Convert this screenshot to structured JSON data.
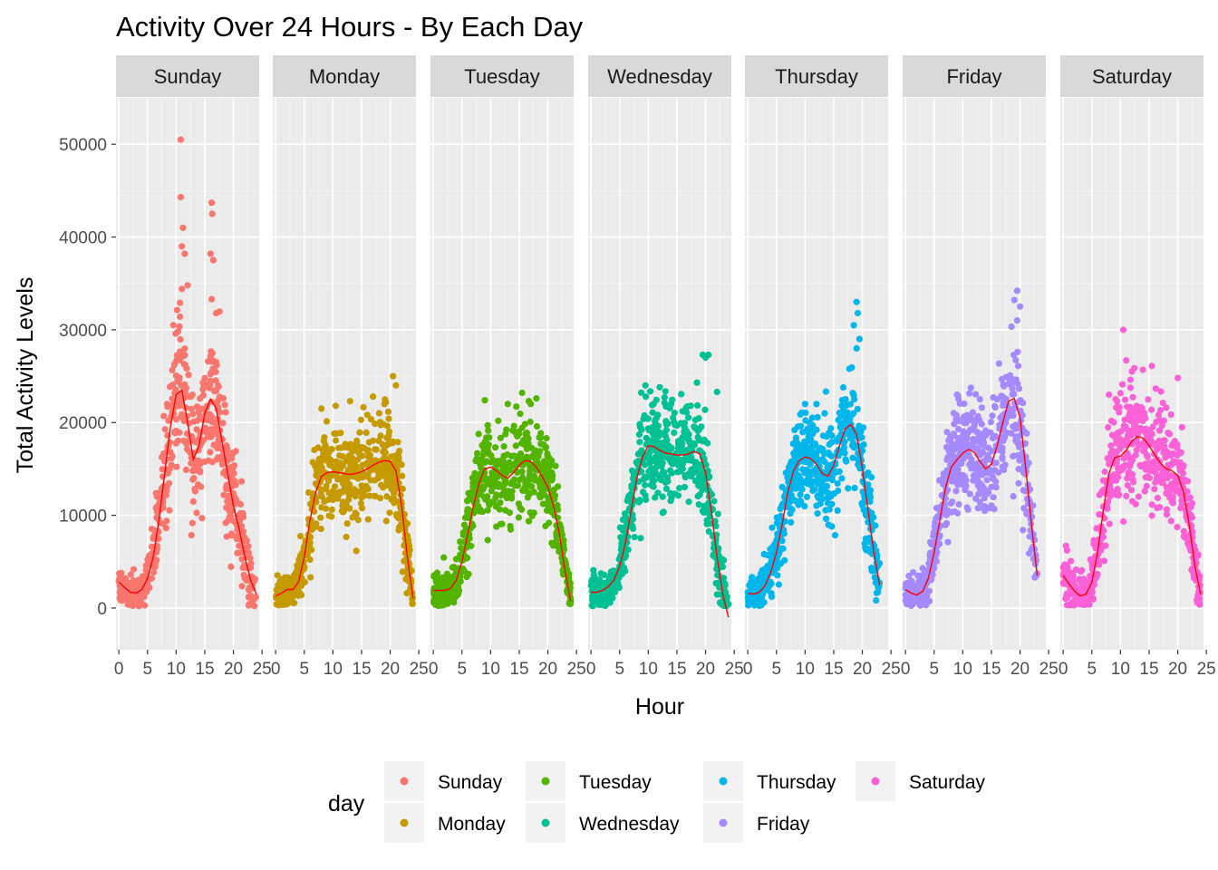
{
  "chart_data": {
    "type": "scatter",
    "title": "Activity Over 24 Hours - By Each Day",
    "xlabel": "Hour",
    "ylabel": "Total Activity Levels",
    "xlim": [
      -0.5,
      24.5
    ],
    "ylim": [
      -4500,
      55000
    ],
    "x_ticks": [
      0,
      5,
      10,
      15,
      20,
      25
    ],
    "y_ticks": [
      0,
      10000,
      20000,
      30000,
      40000,
      50000
    ],
    "grid": true,
    "smooth_line_color": "#ff0000",
    "legend": {
      "title": "day",
      "position": "bottom",
      "entries": [
        "Sunday",
        "Monday",
        "Tuesday",
        "Wednesday",
        "Thursday",
        "Friday",
        "Saturday"
      ]
    },
    "panels": [
      {
        "day": "Sunday",
        "color": "#F8766D",
        "smooth": [
          [
            0,
            2800
          ],
          [
            1,
            2200
          ],
          [
            2,
            1700
          ],
          [
            3,
            1600
          ],
          [
            4,
            2000
          ],
          [
            5,
            3200
          ],
          [
            6,
            5500
          ],
          [
            7,
            9500
          ],
          [
            8,
            14500
          ],
          [
            9,
            19500
          ],
          [
            10,
            23000
          ],
          [
            11,
            23500
          ],
          [
            12,
            20000
          ],
          [
            13,
            16000
          ],
          [
            14,
            17500
          ],
          [
            15,
            21000
          ],
          [
            16,
            22500
          ],
          [
            17,
            21500
          ],
          [
            18,
            18000
          ],
          [
            19,
            14500
          ],
          [
            20,
            11000
          ],
          [
            21,
            8500
          ],
          [
            22,
            5500
          ],
          [
            23,
            3000
          ],
          [
            24,
            1500
          ]
        ],
        "spread": [
          [
            0,
            1800
          ],
          [
            3,
            1500
          ],
          [
            6,
            3500
          ],
          [
            9,
            6000
          ],
          [
            11,
            7000
          ],
          [
            13,
            5500
          ],
          [
            16,
            6500
          ],
          [
            19,
            5500
          ],
          [
            22,
            3500
          ],
          [
            24,
            2000
          ]
        ],
        "outliers": [
          [
            10.8,
            50500
          ],
          [
            10.8,
            44300
          ],
          [
            11.2,
            41000
          ],
          [
            11,
            39000
          ],
          [
            11.5,
            38200
          ],
          [
            12,
            34800
          ],
          [
            11,
            34400
          ],
          [
            9.5,
            30500
          ],
          [
            16.2,
            43700
          ],
          [
            16.3,
            42500
          ],
          [
            16,
            38200
          ],
          [
            16.5,
            37500
          ],
          [
            16.2,
            33300
          ],
          [
            17,
            31800
          ]
        ]
      },
      {
        "day": "Monday",
        "color": "#C49A00",
        "smooth": [
          [
            0,
            1300
          ],
          [
            1,
            1600
          ],
          [
            2,
            2000
          ],
          [
            3,
            2000
          ],
          [
            4,
            2800
          ],
          [
            5,
            5500
          ],
          [
            6,
            9500
          ],
          [
            7,
            12500
          ],
          [
            8,
            14200
          ],
          [
            9,
            14600
          ],
          [
            10,
            14700
          ],
          [
            11,
            14600
          ],
          [
            12,
            14500
          ],
          [
            13,
            14400
          ],
          [
            14,
            14500
          ],
          [
            15,
            14700
          ],
          [
            16,
            15000
          ],
          [
            17,
            15400
          ],
          [
            18,
            15700
          ],
          [
            19,
            15900
          ],
          [
            20,
            15800
          ],
          [
            21,
            14800
          ],
          [
            22,
            11000
          ],
          [
            23,
            5500
          ],
          [
            24,
            1000
          ]
        ],
        "spread": [
          [
            0,
            1800
          ],
          [
            4,
            2000
          ],
          [
            6,
            4000
          ],
          [
            8,
            4500
          ],
          [
            12,
            4500
          ],
          [
            16,
            4500
          ],
          [
            20,
            4500
          ],
          [
            22,
            4000
          ],
          [
            24,
            1500
          ]
        ],
        "outliers": [
          [
            20.5,
            25000
          ],
          [
            21,
            24000
          ],
          [
            17,
            22800
          ],
          [
            13,
            22300
          ],
          [
            10.5,
            21800
          ],
          [
            19,
            22000
          ],
          [
            8,
            21500
          ]
        ]
      },
      {
        "day": "Tuesday",
        "color": "#53B400",
        "smooth": [
          [
            0,
            1900
          ],
          [
            1,
            1900
          ],
          [
            2,
            1900
          ],
          [
            3,
            2100
          ],
          [
            4,
            3000
          ],
          [
            5,
            5000
          ],
          [
            6,
            8000
          ],
          [
            7,
            11000
          ],
          [
            8,
            13500
          ],
          [
            9,
            15000
          ],
          [
            10,
            15200
          ],
          [
            11,
            14800
          ],
          [
            12,
            14300
          ],
          [
            13,
            14000
          ],
          [
            14,
            14600
          ],
          [
            15,
            15400
          ],
          [
            16,
            15900
          ],
          [
            17,
            15800
          ],
          [
            18,
            15200
          ],
          [
            19,
            14200
          ],
          [
            20,
            13000
          ],
          [
            21,
            11000
          ],
          [
            22,
            8000
          ],
          [
            23,
            4000
          ],
          [
            24,
            700
          ]
        ],
        "spread": [
          [
            0,
            1800
          ],
          [
            4,
            2000
          ],
          [
            6,
            3500
          ],
          [
            9,
            4500
          ],
          [
            13,
            4500
          ],
          [
            17,
            4500
          ],
          [
            21,
            4000
          ],
          [
            24,
            1500
          ]
        ],
        "outliers": [
          [
            9,
            22400
          ],
          [
            15.5,
            23200
          ],
          [
            13,
            22000
          ],
          [
            18,
            22600
          ],
          [
            17,
            22000
          ]
        ]
      },
      {
        "day": "Wednesday",
        "color": "#00C094",
        "smooth": [
          [
            0,
            1700
          ],
          [
            1,
            1700
          ],
          [
            2,
            1900
          ],
          [
            3,
            2300
          ],
          [
            4,
            3000
          ],
          [
            5,
            4500
          ],
          [
            6,
            7000
          ],
          [
            7,
            10500
          ],
          [
            8,
            14000
          ],
          [
            9,
            16300
          ],
          [
            10,
            17500
          ],
          [
            11,
            17400
          ],
          [
            12,
            17000
          ],
          [
            13,
            16700
          ],
          [
            14,
            16600
          ],
          [
            15,
            16500
          ],
          [
            16,
            16500
          ],
          [
            17,
            16600
          ],
          [
            18,
            16900
          ],
          [
            19,
            16600
          ],
          [
            20,
            14600
          ],
          [
            21,
            10500
          ],
          [
            22,
            5500
          ],
          [
            23,
            1500
          ],
          [
            24,
            -1000
          ]
        ],
        "spread": [
          [
            0,
            1800
          ],
          [
            4,
            2000
          ],
          [
            6,
            3500
          ],
          [
            9,
            5000
          ],
          [
            13,
            5000
          ],
          [
            17,
            5000
          ],
          [
            20,
            5000
          ],
          [
            22,
            4000
          ],
          [
            24,
            2000
          ]
        ],
        "outliers": [
          [
            19.5,
            27300
          ],
          [
            20,
            27000
          ],
          [
            20.5,
            27300
          ],
          [
            9.5,
            24000
          ],
          [
            12,
            23800
          ],
          [
            18.5,
            24300
          ],
          [
            22,
            23300
          ]
        ]
      },
      {
        "day": "Thursday",
        "color": "#00B6EB",
        "smooth": [
          [
            0,
            1600
          ],
          [
            1,
            1500
          ],
          [
            2,
            1700
          ],
          [
            3,
            2400
          ],
          [
            4,
            3800
          ],
          [
            5,
            6000
          ],
          [
            6,
            9000
          ],
          [
            7,
            12500
          ],
          [
            8,
            14800
          ],
          [
            9,
            15900
          ],
          [
            10,
            16300
          ],
          [
            11,
            16100
          ],
          [
            12,
            15500
          ],
          [
            13,
            14500
          ],
          [
            14,
            14200
          ],
          [
            15,
            15400
          ],
          [
            16,
            17500
          ],
          [
            17,
            19300
          ],
          [
            18,
            19800
          ],
          [
            19,
            18700
          ],
          [
            20,
            15000
          ],
          [
            21,
            10500
          ],
          [
            22,
            6000
          ],
          [
            23,
            2500
          ]
        ],
        "spread": [
          [
            0,
            1800
          ],
          [
            4,
            2000
          ],
          [
            6,
            3500
          ],
          [
            9,
            4500
          ],
          [
            13,
            4500
          ],
          [
            16,
            5000
          ],
          [
            18,
            6000
          ],
          [
            20,
            5500
          ],
          [
            22,
            4000
          ],
          [
            23,
            2000
          ]
        ],
        "outliers": [
          [
            19,
            33000
          ],
          [
            19.2,
            31800
          ],
          [
            18.5,
            30500
          ],
          [
            19.5,
            29000
          ],
          [
            19,
            28000
          ],
          [
            10,
            22000
          ],
          [
            12,
            22000
          ]
        ]
      },
      {
        "day": "Friday",
        "color": "#A58AFF",
        "smooth": [
          [
            0,
            2000
          ],
          [
            1,
            1600
          ],
          [
            2,
            1400
          ],
          [
            3,
            1800
          ],
          [
            4,
            3200
          ],
          [
            5,
            6000
          ],
          [
            6,
            9500
          ],
          [
            7,
            13000
          ],
          [
            8,
            15200
          ],
          [
            9,
            16000
          ],
          [
            10,
            16700
          ],
          [
            11,
            17100
          ],
          [
            12,
            16800
          ],
          [
            13,
            15800
          ],
          [
            14,
            15000
          ],
          [
            15,
            15500
          ],
          [
            16,
            17500
          ],
          [
            17,
            20000
          ],
          [
            18,
            22300
          ],
          [
            19,
            22600
          ],
          [
            20,
            20500
          ],
          [
            21,
            15000
          ],
          [
            22,
            9000
          ],
          [
            23,
            3500
          ]
        ],
        "spread": [
          [
            0,
            1800
          ],
          [
            4,
            2000
          ],
          [
            6,
            3500
          ],
          [
            9,
            5000
          ],
          [
            13,
            5000
          ],
          [
            16,
            5500
          ],
          [
            18,
            6500
          ],
          [
            20,
            6000
          ],
          [
            22,
            4000
          ],
          [
            23,
            2000
          ]
        ],
        "outliers": [
          [
            19.5,
            34200
          ],
          [
            19,
            33200
          ],
          [
            20,
            32500
          ],
          [
            19.5,
            31000
          ],
          [
            9,
            23000
          ],
          [
            13,
            22500
          ],
          [
            16,
            22500
          ]
        ]
      },
      {
        "day": "Saturday",
        "color": "#FB61D7",
        "smooth": [
          [
            0,
            3500
          ],
          [
            1,
            2600
          ],
          [
            2,
            1800
          ],
          [
            3,
            1300
          ],
          [
            4,
            1500
          ],
          [
            5,
            2800
          ],
          [
            6,
            6000
          ],
          [
            7,
            10500
          ],
          [
            8,
            14500
          ],
          [
            9,
            16200
          ],
          [
            10,
            16400
          ],
          [
            11,
            17000
          ],
          [
            12,
            18000
          ],
          [
            13,
            18500
          ],
          [
            14,
            18300
          ],
          [
            15,
            17500
          ],
          [
            16,
            16500
          ],
          [
            17,
            15600
          ],
          [
            18,
            15000
          ],
          [
            19,
            14800
          ],
          [
            20,
            14300
          ],
          [
            21,
            12500
          ],
          [
            22,
            9000
          ],
          [
            23,
            4500
          ],
          [
            24,
            1500
          ]
        ],
        "spread": [
          [
            0,
            2500
          ],
          [
            4,
            2000
          ],
          [
            6,
            4000
          ],
          [
            9,
            5500
          ],
          [
            13,
            5500
          ],
          [
            17,
            5500
          ],
          [
            20,
            5000
          ],
          [
            22,
            4000
          ],
          [
            24,
            2000
          ]
        ],
        "outliers": [
          [
            10.5,
            30000
          ],
          [
            11,
            26700
          ],
          [
            15.5,
            26100
          ],
          [
            20,
            24800
          ],
          [
            12,
            25500
          ],
          [
            8,
            23000
          ]
        ]
      }
    ]
  }
}
